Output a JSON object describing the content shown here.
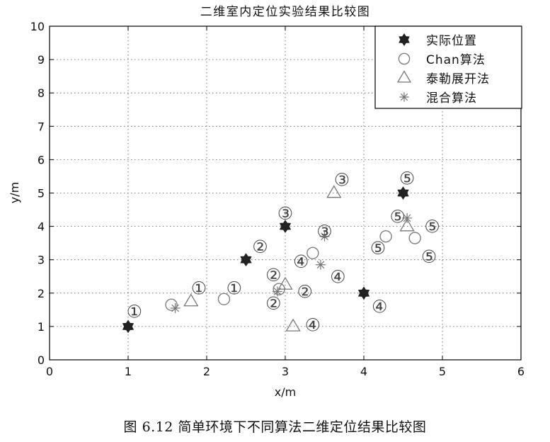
{
  "chart_data": {
    "type": "scatter",
    "title": "二维室内定位实验结果比较图",
    "xlabel": "x/m",
    "ylabel": "y/m",
    "xlim": [
      0,
      6
    ],
    "ylim": [
      0,
      10
    ],
    "xticks": [
      "0",
      "1",
      "2",
      "3",
      "4",
      "5",
      "6"
    ],
    "yticks": [
      "0",
      "1",
      "2",
      "3",
      "4",
      "5",
      "6",
      "7",
      "8",
      "9",
      "10"
    ],
    "grid": true,
    "legend_position": "top-right",
    "series": [
      {
        "name": "实际位置",
        "marker": "filled-hexagram",
        "points": [
          [
            1.0,
            1.0
          ],
          [
            2.5,
            3.0
          ],
          [
            3.0,
            4.0
          ],
          [
            4.0,
            2.0
          ],
          [
            4.5,
            5.0
          ]
        ]
      },
      {
        "name": "Chan算法",
        "marker": "circle",
        "points": [
          [
            1.55,
            1.65
          ],
          [
            2.22,
            1.82
          ],
          [
            2.92,
            2.12
          ],
          [
            3.35,
            3.2
          ],
          [
            4.28,
            3.7
          ],
          [
            4.65,
            3.65
          ]
        ]
      },
      {
        "name": "泰勒展开法",
        "marker": "triangle",
        "points": [
          [
            1.8,
            1.75
          ],
          [
            3.0,
            2.25
          ],
          [
            3.1,
            1.0
          ],
          [
            3.62,
            5.0
          ],
          [
            4.55,
            4.0
          ]
        ]
      },
      {
        "name": "混合算法",
        "marker": "asterisk",
        "points": [
          [
            1.6,
            1.55
          ],
          [
            2.9,
            2.05
          ],
          [
            3.45,
            2.85
          ],
          [
            3.5,
            3.7
          ],
          [
            4.55,
            4.25
          ]
        ]
      }
    ],
    "annotations": [
      {
        "label": "①",
        "x": 1.08,
        "y": 1.45
      },
      {
        "label": "①",
        "x": 1.9,
        "y": 2.15
      },
      {
        "label": "①",
        "x": 2.35,
        "y": 2.15
      },
      {
        "label": "②",
        "x": 2.68,
        "y": 3.4
      },
      {
        "label": "②",
        "x": 2.85,
        "y": 2.55
      },
      {
        "label": "②",
        "x": 3.25,
        "y": 2.05
      },
      {
        "label": "②",
        "x": 2.85,
        "y": 1.7
      },
      {
        "label": "③",
        "x": 3.0,
        "y": 4.4
      },
      {
        "label": "③",
        "x": 3.72,
        "y": 5.4
      },
      {
        "label": "③",
        "x": 3.5,
        "y": 3.85
      },
      {
        "label": "④",
        "x": 3.2,
        "y": 2.95
      },
      {
        "label": "④",
        "x": 3.67,
        "y": 2.5
      },
      {
        "label": "④",
        "x": 3.35,
        "y": 1.05
      },
      {
        "label": "④",
        "x": 4.2,
        "y": 1.6
      },
      {
        "label": "⑤",
        "x": 4.55,
        "y": 5.45
      },
      {
        "label": "⑤",
        "x": 4.43,
        "y": 4.3
      },
      {
        "label": "⑤",
        "x": 4.87,
        "y": 4.0
      },
      {
        "label": "⑤",
        "x": 4.18,
        "y": 3.35
      },
      {
        "label": "⑤",
        "x": 4.83,
        "y": 3.1
      }
    ],
    "colors": {
      "actual": "#222222",
      "hollow": "#777777",
      "axis": "#000000",
      "grid": "#555555"
    }
  },
  "caption": "图 6.12 简单环境下不同算法二维定位结果比较图"
}
